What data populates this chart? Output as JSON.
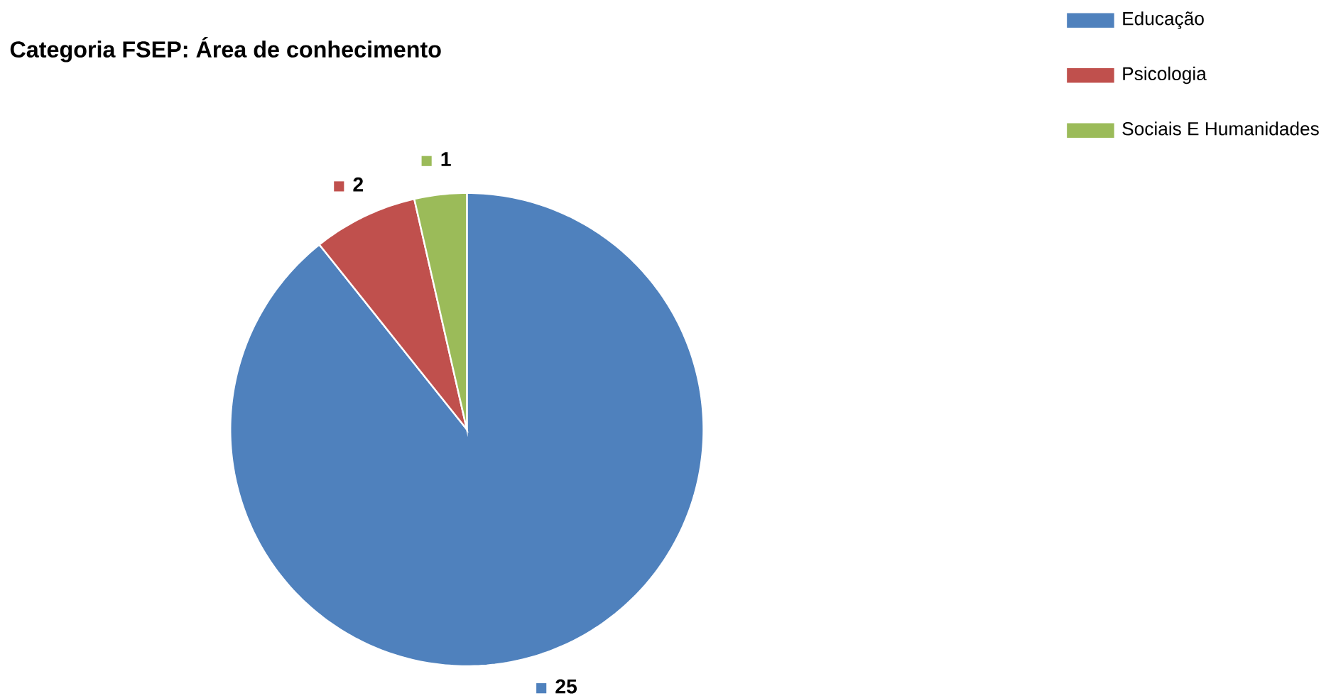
{
  "chart_data": {
    "type": "pie",
    "title": "Categoria FSEP: Área de conhecimento",
    "categories": [
      "Educação",
      "Psicologia",
      "Sociais E Humanidades"
    ],
    "values": [
      25,
      2,
      1
    ],
    "colors": [
      "#4f81bd",
      "#c0504d",
      "#9bbb59"
    ],
    "data_labels": true,
    "legend": "top right"
  }
}
